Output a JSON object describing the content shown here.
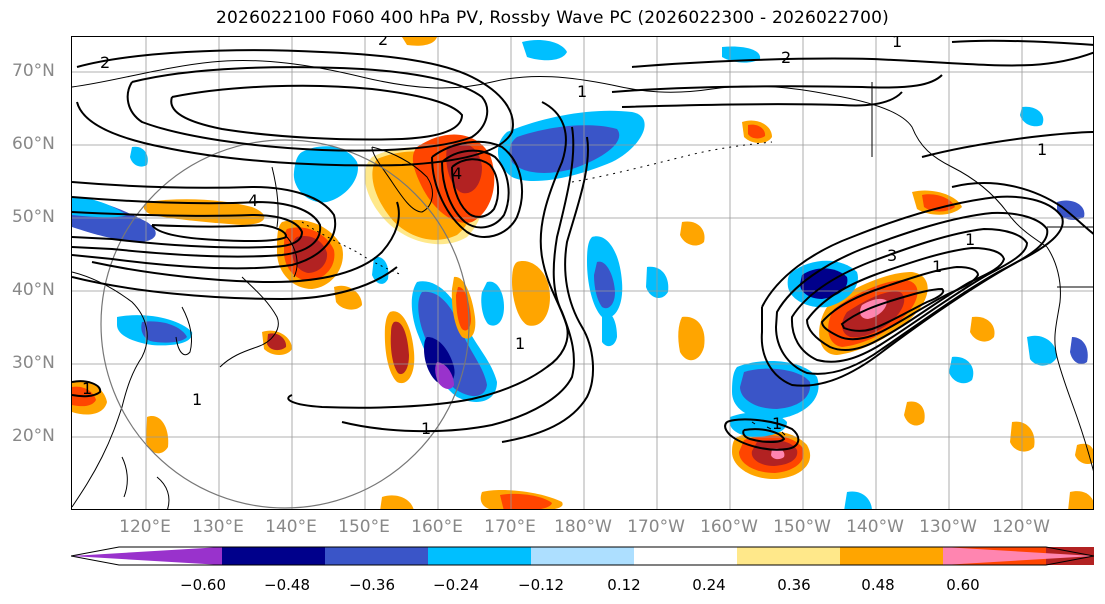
{
  "title": "2026022100 F060 400 hPa PV, Rossby Wave PC (2026022300 - 2026022700)",
  "lat_labels": [
    "70°N",
    "60°N",
    "50°N",
    "40°N",
    "30°N",
    "20°N"
  ],
  "lon_labels": [
    "120°E",
    "130°E",
    "140°E",
    "150°E",
    "160°E",
    "170°E",
    "180°W",
    "170°W",
    "160°W",
    "150°W",
    "140°W",
    "130°W",
    "120°W"
  ],
  "contour_labels": [
    "2",
    "2",
    "4",
    "2",
    "4",
    "1",
    "1",
    "1",
    "3",
    "1",
    "1",
    "1",
    "1",
    "1",
    "1",
    "1"
  ],
  "colorbar": {
    "ticks": [
      "−0.60",
      "−0.48",
      "−0.36",
      "−0.24",
      "−0.12",
      "0.12",
      "0.24",
      "0.36",
      "0.48",
      "0.60"
    ],
    "colors": [
      "#9932CC",
      "#00008B",
      "#3A55C8",
      "#00BFFF",
      "#ADDFFF",
      "#FFFFFF",
      "#FFE88A",
      "#FFA500",
      "#FF4500",
      "#B22222",
      "#FF85B0"
    ]
  }
}
